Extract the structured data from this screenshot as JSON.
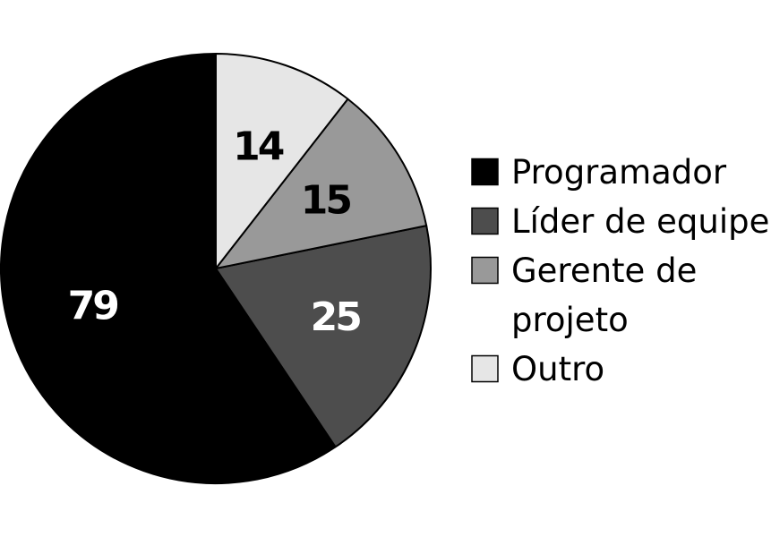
{
  "chart_data": {
    "type": "pie",
    "slices": [
      {
        "label": "Programador",
        "value": 79,
        "color": "#000000",
        "label_color": "#ffffff"
      },
      {
        "label": "Líder de equipe",
        "value": 25,
        "color": "#4d4d4d",
        "label_color": "#ffffff"
      },
      {
        "label": "Gerente de projeto",
        "label_lines": [
          "Gerente de",
          "projeto"
        ],
        "value": 15,
        "color": "#999999",
        "label_color": "#000000"
      },
      {
        "label": "Outro",
        "value": 14,
        "color": "#e6e6e6",
        "label_color": "#000000"
      }
    ],
    "legend": {
      "position": "right"
    }
  }
}
